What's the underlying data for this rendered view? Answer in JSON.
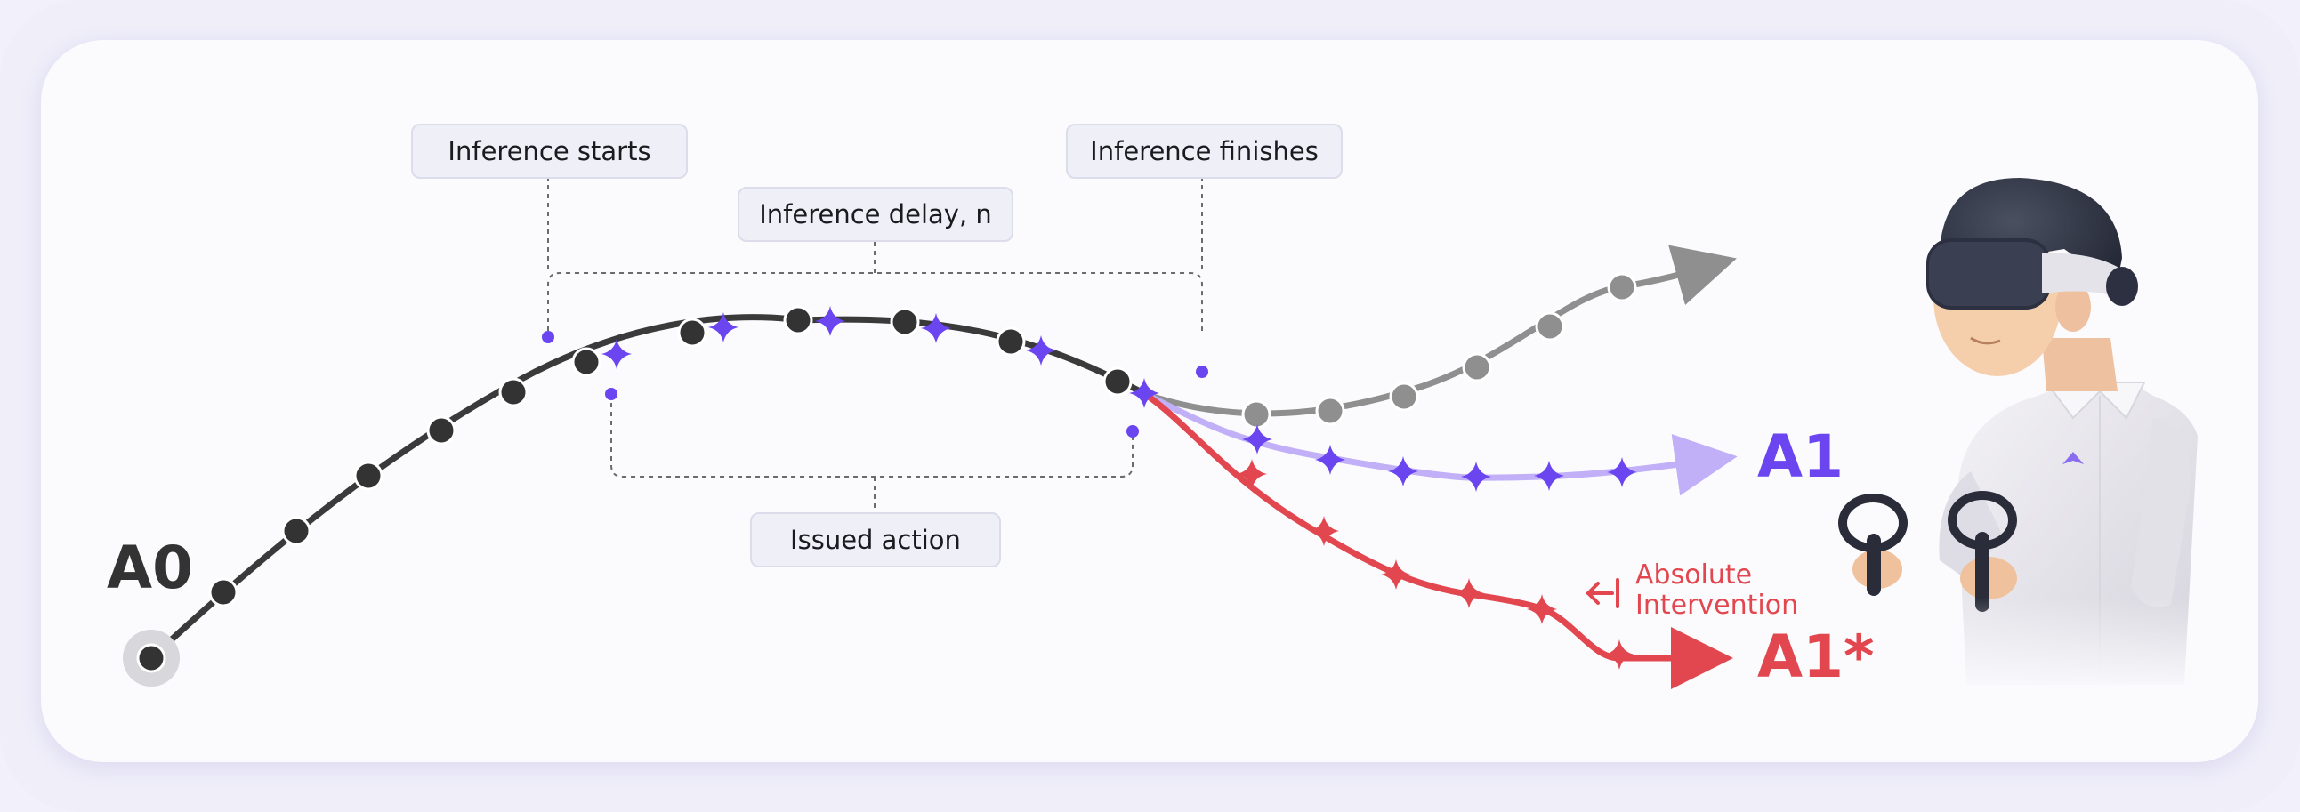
{
  "labels": {
    "inference_starts": "Inference starts",
    "inference_finishes": "Inference finishes",
    "inference_delay": "Inference delay, n",
    "issued_action": "Issued action",
    "a0": "A0",
    "a1": "A1",
    "a1_star": "A1*",
    "absolute_line1": "Absolute",
    "absolute_line2": "Intervention"
  },
  "colors": {
    "trajectory_dark": "#3a3a3a",
    "dot_dark": "#333333",
    "action_purple": "#6a45f0",
    "branch_gray": "#8f8f8f",
    "branch_purple": "#c1b0f7",
    "intervention_red": "#e2474f",
    "label_box_bg": "#efeff8"
  },
  "icons": {
    "operator": "vr-operator-illustration",
    "arrow_intervention": "left-arrow-bar-icon"
  }
}
